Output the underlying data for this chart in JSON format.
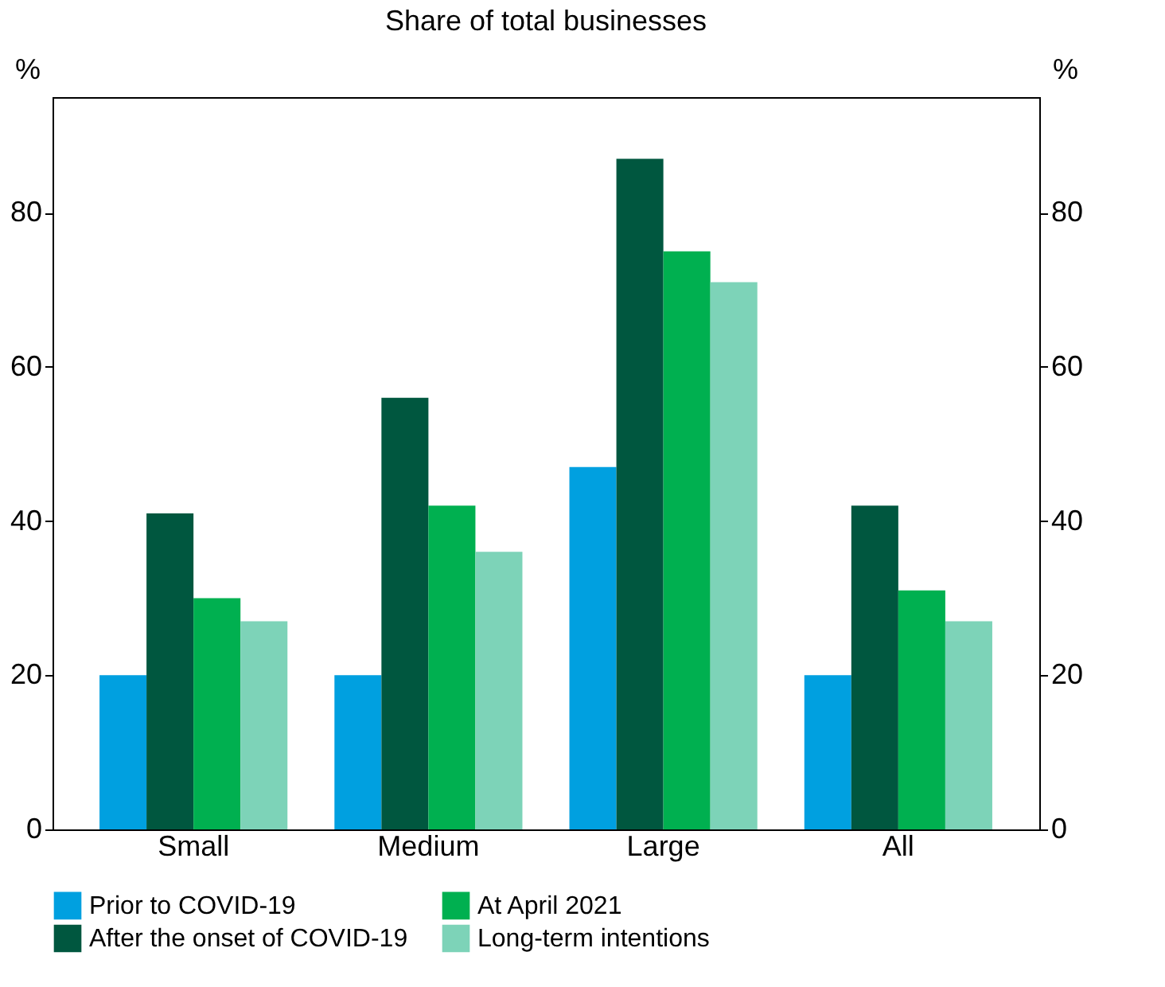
{
  "chart_data": {
    "type": "bar",
    "title": "Share of total businesses",
    "ylabel": "%",
    "y2label": "%",
    "categories": [
      "Small",
      "Medium",
      "Large",
      "All"
    ],
    "series": [
      {
        "name": "Prior to COVID-19",
        "color": "#00a0e0",
        "values": [
          20,
          20,
          47,
          20
        ]
      },
      {
        "name": "After the onset of COVID-19",
        "color": "#00573f",
        "values": [
          41,
          56,
          87,
          42
        ]
      },
      {
        "name": "At April 2021",
        "color": "#00b050",
        "values": [
          30,
          42,
          75,
          31
        ]
      },
      {
        "name": "Long-term intentions",
        "color": "#7dd3b8",
        "values": [
          27,
          36,
          71,
          27
        ]
      }
    ],
    "ylim": [
      0,
      95
    ],
    "yticks": [
      0,
      20,
      40,
      60,
      80
    ],
    "y2lim": [
      0,
      95
    ],
    "y2ticks": [
      0,
      20,
      40,
      60,
      80
    ],
    "grid": false,
    "legend": "bottom"
  }
}
